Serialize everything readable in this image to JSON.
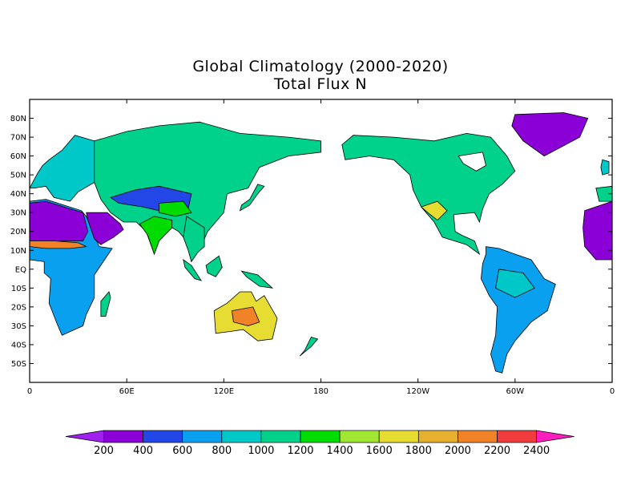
{
  "title": "Global Climatology (2000-2020)",
  "subtitle": "Total Flux N",
  "lat_labels": [
    "80N",
    "70N",
    "60N",
    "50N",
    "40N",
    "30N",
    "20N",
    "10N",
    "EQ",
    "10S",
    "20S",
    "30S",
    "40S",
    "50S"
  ],
  "lat_values": [
    80,
    70,
    60,
    50,
    40,
    30,
    20,
    10,
    0,
    -10,
    -20,
    -30,
    -40,
    -50
  ],
  "lon_labels": [
    "0",
    "60E",
    "120E",
    "180",
    "120W",
    "60W",
    "0"
  ],
  "lon_values": [
    0,
    60,
    120,
    180,
    240,
    300,
    360
  ],
  "map_extent": {
    "lon_min": 0,
    "lon_max": 360,
    "lat_min": -60,
    "lat_max": 90
  },
  "colorbar": {
    "labels": [
      "200",
      "400",
      "600",
      "800",
      "1000",
      "1200",
      "1400",
      "1600",
      "1800",
      "2000",
      "2200",
      "2400"
    ],
    "colors": [
      "#a020f0",
      "#8c00d8",
      "#2346e6",
      "#0aa0f0",
      "#00c8c8",
      "#00d28c",
      "#00dc00",
      "#a0e632",
      "#e6dc32",
      "#e6af2d",
      "#f08228",
      "#f03c3c",
      "#ff1ebe"
    ]
  },
  "land_colors": {
    "desert": "#8c00d8",
    "low": "#2346e6",
    "mid": "#0aa0f0",
    "teal": "#00c8c8",
    "green": "#00d28c",
    "bright": "#00dc00",
    "yellow": "#e6dc32",
    "orange": "#f08228"
  }
}
